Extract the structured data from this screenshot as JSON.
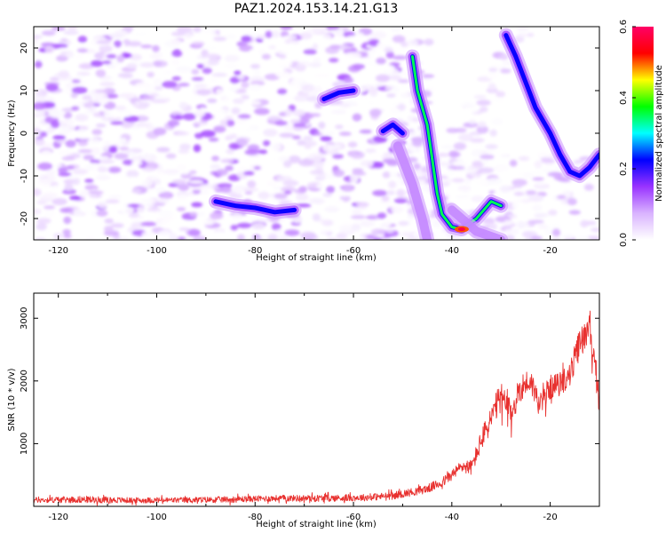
{
  "title": "PAZ1.2024.153.14.21.G13",
  "chart_data": [
    {
      "type": "heatmap",
      "title": "",
      "xlabel": "Height of straight line (km)",
      "ylabel": "Frequency (Hz)",
      "xlim": [
        -125,
        -10
      ],
      "ylim": [
        -25,
        25
      ],
      "xticks": [
        -120,
        -100,
        -80,
        -60,
        -40,
        -20
      ],
      "yticks": [
        -20,
        -10,
        0,
        10,
        20
      ],
      "grid": false,
      "colorbar": {
        "label": "Normalized spectral amplitude",
        "range": [
          0.0,
          0.6
        ],
        "ticks": [
          0.0,
          0.2,
          0.4,
          0.6
        ],
        "colormap": [
          "#ffffff",
          "#d9b3ff",
          "#9933ff",
          "#0000ff",
          "#00ffff",
          "#00ff00",
          "#ffff00",
          "#ff0000",
          "#ff0066"
        ]
      },
      "ridges": [
        {
          "name": "",
          "points": [
            [
              -88,
              -16
            ],
            [
              -84,
              -17
            ],
            [
              -80,
              -17.5
            ],
            [
              -76,
              -18.5
            ],
            [
              -72,
              -18
            ]
          ],
          "amplitude": 0.2
        },
        {
          "name": "",
          "points": [
            [
              -66,
              8
            ],
            [
              -63,
              9.5
            ],
            [
              -60,
              10
            ]
          ],
          "amplitude": 0.2
        },
        {
          "name": "",
          "points": [
            [
              -54,
              0.5
            ],
            [
              -52,
              2
            ],
            [
              -50,
              0
            ]
          ],
          "amplitude": 0.15
        },
        {
          "name": "",
          "points": [
            [
              -51,
              -3
            ],
            [
              -48,
              -12
            ],
            [
              -46,
              -20
            ],
            [
              -45,
              -25
            ]
          ],
          "amplitude": 0.1
        },
        {
          "name": "",
          "points": [
            [
              -48,
              18
            ],
            [
              -47,
              10
            ],
            [
              -45,
              2
            ],
            [
              -44,
              -6
            ],
            [
              -43,
              -14
            ],
            [
              -42,
              -19
            ],
            [
              -40,
              -22
            ],
            [
              -38,
              -22.5
            ],
            [
              -35,
              -20
            ],
            [
              -32,
              -16
            ],
            [
              -30,
              -17
            ]
          ],
          "amplitude": 0.45
        },
        {
          "name": "",
          "points": [
            [
              -29,
              23
            ],
            [
              -27,
              18
            ],
            [
              -25,
              12
            ],
            [
              -23,
              6
            ],
            [
              -20,
              0
            ],
            [
              -18,
              -5
            ],
            [
              -16,
              -9
            ],
            [
              -14,
              -10
            ],
            [
              -12,
              -8
            ],
            [
              -10,
              -5
            ]
          ],
          "amplitude": 0.2
        },
        {
          "name": "",
          "points": [
            [
              -40,
              -18
            ],
            [
              -35,
              -23
            ],
            [
              -30,
              -25
            ]
          ],
          "amplitude": 0.1
        }
      ]
    },
    {
      "type": "line",
      "title": "",
      "xlabel": "Height of straight line (km)",
      "ylabel": "SNR (10 * v/v)",
      "xlim": [
        -125,
        -10
      ],
      "ylim": [
        0,
        3400
      ],
      "xticks": [
        -120,
        -100,
        -80,
        -60,
        -40,
        -20
      ],
      "yticks": [
        1000,
        2000,
        3000
      ],
      "grid": false,
      "series": [
        {
          "name": "",
          "color": "#e8312f",
          "x": [
            -125,
            -115,
            -105,
            -95,
            -85,
            -75,
            -65,
            -58,
            -52,
            -48,
            -45,
            -42,
            -40,
            -38,
            -36,
            -34,
            -32,
            -30,
            -28,
            -26,
            -24,
            -22,
            -20,
            -18,
            -16,
            -14,
            -13,
            -12,
            -11,
            -10
          ],
          "y": [
            100,
            110,
            95,
            100,
            110,
            130,
            130,
            140,
            170,
            230,
            280,
            380,
            500,
            640,
            620,
            1050,
            1400,
            1750,
            1450,
            1900,
            2000,
            1600,
            1900,
            1950,
            2100,
            2600,
            2700,
            3000,
            2200,
            1700
          ],
          "noise": [
            90,
            110,
            90,
            90,
            100,
            100,
            110,
            110,
            120,
            130,
            140,
            160,
            180,
            200,
            250,
            350,
            450,
            500,
            450,
            450,
            400,
            400,
            380,
            380,
            400,
            500,
            500,
            550,
            500,
            400
          ]
        }
      ]
    }
  ]
}
